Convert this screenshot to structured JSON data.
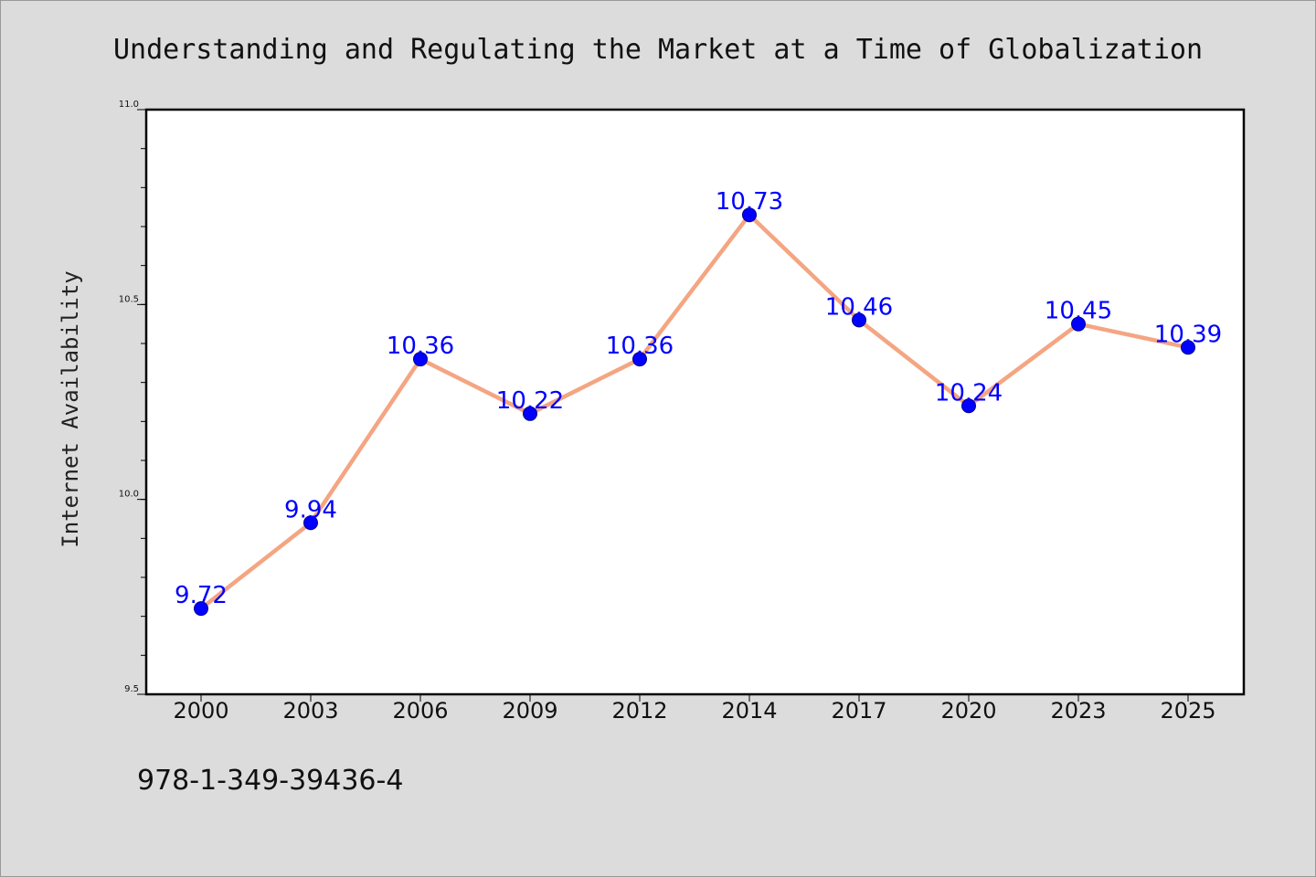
{
  "chart_data": {
    "type": "line",
    "title": "Understanding and Regulating the Market at a Time of Globalization",
    "xlabel": "",
    "ylabel": "Internet Availability",
    "categories": [
      "2000",
      "2003",
      "2006",
      "2009",
      "2012",
      "2014",
      "2017",
      "2020",
      "2023",
      "2025"
    ],
    "values": [
      9.72,
      9.94,
      10.36,
      10.22,
      10.36,
      10.73,
      10.46,
      10.24,
      10.45,
      10.39
    ],
    "data_labels": [
      "9.72",
      "9.94",
      "10.36",
      "10.22",
      "10.36",
      "10.73",
      "10.46",
      "10.24",
      "10.45",
      "10.39"
    ],
    "ylim": [
      9.5,
      11.0
    ],
    "yticks": [
      9.5,
      10.0,
      10.5,
      11.0
    ],
    "ytick_labels": [
      "9.5",
      "10.0",
      "10.5",
      "11.0"
    ],
    "yminor_step": 0.1,
    "grid": false,
    "legend": "none",
    "colors": {
      "line": "#f4a582",
      "marker": "#0000ff",
      "label": "#0000ff",
      "background": "#dcdcdc",
      "plot_background": "#ffffff"
    }
  },
  "footer": {
    "isbn": "978-1-349-39436-4"
  }
}
